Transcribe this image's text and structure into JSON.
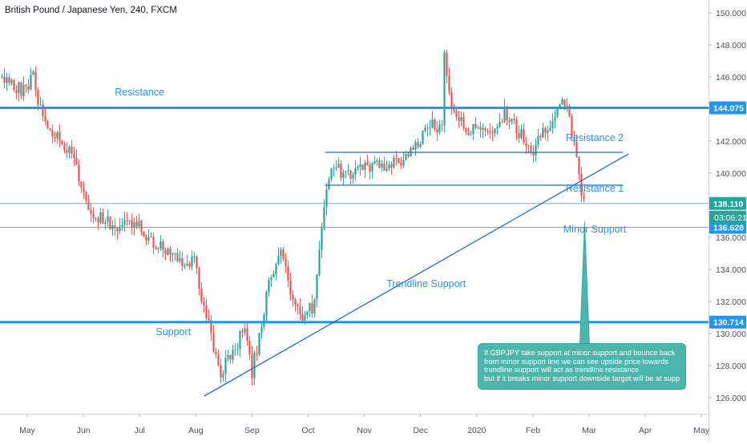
{
  "header": {
    "symbol_title": "British Pound / Japanese Yen, 240, FXCM"
  },
  "colors": {
    "up": "#26a69a",
    "down": "#ef5350",
    "drawing": "#2196f3",
    "bubble": "#4db6ac",
    "trendline": "#1e6fd0",
    "price_tag": "#2196f3",
    "current_tag": "#26a69a"
  },
  "chart_data": {
    "type": "candlestick",
    "y_axis": {
      "min": 125.0,
      "max": 150.8,
      "ticks": [
        126,
        128,
        130,
        132,
        134,
        136,
        138,
        140,
        142,
        144,
        146,
        148,
        150
      ],
      "tick_labels": [
        "126.000",
        "128.000",
        "130.000",
        "132.000",
        "134.000",
        "136.000",
        "138.000",
        "140.000",
        "142.000",
        "144.000",
        "146.000",
        "148.000",
        "150.000"
      ]
    },
    "x_axis": {
      "labels": [
        "May",
        "Jun",
        "Jul",
        "Aug",
        "Sep",
        "Oct",
        "Nov",
        "Dec",
        "2020",
        "Feb",
        "Mar",
        "Apr",
        "May"
      ]
    },
    "price_path": [
      {
        "month": -0.45,
        "price": 146.0
      },
      {
        "month": -0.2,
        "price": 145.3
      },
      {
        "month": 0.0,
        "price": 145.2
      },
      {
        "month": 0.1,
        "price": 146.4
      },
      {
        "month": 0.2,
        "price": 144.5
      },
      {
        "month": 0.45,
        "price": 142.5
      },
      {
        "month": 0.8,
        "price": 141.0
      },
      {
        "month": 1.0,
        "price": 138.8
      },
      {
        "month": 1.15,
        "price": 137.6
      },
      {
        "month": 1.3,
        "price": 137.2
      },
      {
        "month": 1.6,
        "price": 136.6
      },
      {
        "month": 2.0,
        "price": 137.0
      },
      {
        "month": 2.1,
        "price": 136.2
      },
      {
        "month": 2.3,
        "price": 135.5
      },
      {
        "month": 2.6,
        "price": 135.0
      },
      {
        "month": 2.85,
        "price": 134.3
      },
      {
        "month": 3.0,
        "price": 134.6
      },
      {
        "month": 3.1,
        "price": 132.0
      },
      {
        "month": 3.2,
        "price": 130.8
      },
      {
        "month": 3.3,
        "price": 129.5
      },
      {
        "month": 3.45,
        "price": 127.6
      },
      {
        "month": 3.55,
        "price": 128.3
      },
      {
        "month": 3.7,
        "price": 129.0
      },
      {
        "month": 3.85,
        "price": 130.3
      },
      {
        "month": 4.0,
        "price": 127.6
      },
      {
        "month": 4.1,
        "price": 129.4
      },
      {
        "month": 4.3,
        "price": 133.0
      },
      {
        "month": 4.5,
        "price": 135.3
      },
      {
        "month": 4.7,
        "price": 132.3
      },
      {
        "month": 4.9,
        "price": 131.2
      },
      {
        "month": 5.1,
        "price": 131.6
      },
      {
        "month": 5.2,
        "price": 135.5
      },
      {
        "month": 5.3,
        "price": 138.3
      },
      {
        "month": 5.45,
        "price": 140.8
      },
      {
        "month": 5.6,
        "price": 139.8
      },
      {
        "month": 5.9,
        "price": 140.2
      },
      {
        "month": 6.1,
        "price": 140.5
      },
      {
        "month": 6.4,
        "price": 140.3
      },
      {
        "month": 6.7,
        "price": 140.8
      },
      {
        "month": 6.9,
        "price": 141.5
      },
      {
        "month": 7.0,
        "price": 142.2
      },
      {
        "month": 7.2,
        "price": 143.0
      },
      {
        "month": 7.38,
        "price": 142.8
      },
      {
        "month": 7.42,
        "price": 147.2
      },
      {
        "month": 7.55,
        "price": 144.2
      },
      {
        "month": 7.8,
        "price": 142.6
      },
      {
        "month": 8.0,
        "price": 143.0
      },
      {
        "month": 8.2,
        "price": 142.2
      },
      {
        "month": 8.5,
        "price": 143.8
      },
      {
        "month": 8.7,
        "price": 142.8
      },
      {
        "month": 8.9,
        "price": 142.0
      },
      {
        "month": 9.0,
        "price": 141.4
      },
      {
        "month": 9.2,
        "price": 142.8
      },
      {
        "month": 9.4,
        "price": 143.5
      },
      {
        "month": 9.55,
        "price": 144.3
      },
      {
        "month": 9.65,
        "price": 143.4
      },
      {
        "month": 9.75,
        "price": 141.5
      },
      {
        "month": 9.85,
        "price": 138.8
      },
      {
        "month": 9.92,
        "price": 138.1
      }
    ],
    "current_price": {
      "value": 138.11,
      "label": "138.110",
      "countdown": "03:06:21"
    },
    "level_tags": [
      {
        "value": 144.075,
        "label": "144.075"
      },
      {
        "value": 136.628,
        "label": "136.628"
      },
      {
        "value": 130.714,
        "label": "130.714"
      }
    ],
    "drawings": {
      "horizontal_lines": [
        {
          "name": "resistance",
          "value": 144.075,
          "thick": true
        },
        {
          "name": "support",
          "value": 130.714,
          "thick": true
        },
        {
          "name": "minor-support",
          "value": 136.628,
          "thick": false
        },
        {
          "name": "current-price",
          "value": 138.11,
          "thick": false
        }
      ],
      "segments": [
        {
          "name": "resistance-2",
          "from": {
            "month": 5.3,
            "price": 141.3
          },
          "to": {
            "month": 10.6,
            "price": 141.3
          }
        },
        {
          "name": "resistance-1",
          "from": {
            "month": 5.3,
            "price": 139.25
          },
          "to": {
            "month": 10.6,
            "price": 139.25
          }
        }
      ],
      "trendline": {
        "from": {
          "month": 3.15,
          "price": 126.1
        },
        "to": {
          "month": 10.7,
          "price": 141.2
        }
      },
      "labels": [
        {
          "name": "resistance",
          "text": "Resistance",
          "month": 2.0,
          "price": 144.85
        },
        {
          "name": "resistance-2",
          "text": "Resistance 2",
          "month": 10.1,
          "price": 142.0
        },
        {
          "name": "resistance-1",
          "text": "Resistance 1",
          "month": 10.1,
          "price": 138.85
        },
        {
          "name": "minor-support",
          "text": "Minor Support",
          "month": 10.1,
          "price": 136.3
        },
        {
          "name": "trendline-support",
          "text": "Trendline Support",
          "month": 7.1,
          "price": 132.9
        },
        {
          "name": "support",
          "text": "Support",
          "month": 2.6,
          "price": 129.9
        }
      ],
      "callout_anchor": {
        "month": 9.92,
        "price": 137.0
      },
      "callout_lines": [
        "If GBPJPY  take support at minor support and bounce back",
        "from minor support line we can see upside price towards",
        "trendline support will act as trendline resistance",
        "but if it breaks minor support downside target will be at support line"
      ]
    }
  }
}
